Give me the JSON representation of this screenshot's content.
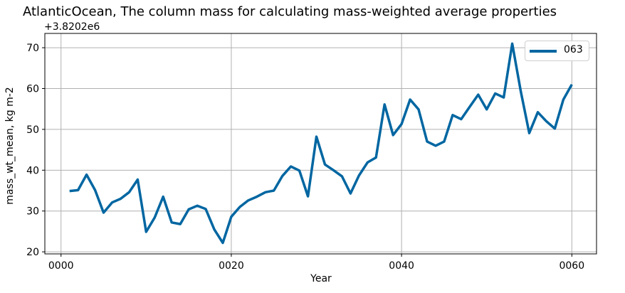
{
  "chart_data": {
    "type": "line",
    "title": "AtlanticOcean, The column mass for calculating mass-weighted average properties",
    "xlabel": "Year",
    "ylabel": "mass_wt_mean, kg m-2",
    "y_offset_label": "+3.8202e6",
    "xlim": [
      -1.9,
      62.9
    ],
    "ylim": [
      19.5,
      73.5
    ],
    "xticks": [
      0,
      20,
      40,
      60
    ],
    "xtick_labels": [
      "0000",
      "0020",
      "0040",
      "0060"
    ],
    "yticks": [
      20,
      30,
      40,
      50,
      60,
      70
    ],
    "ytick_labels": [
      "20",
      "30",
      "40",
      "50",
      "60",
      "70"
    ],
    "grid": true,
    "legend_position": "top-right",
    "series": [
      {
        "name": "063",
        "color": "#0066a1",
        "x": [
          1,
          2,
          3,
          4,
          5,
          6,
          7,
          8,
          9,
          10,
          11,
          12,
          13,
          14,
          15,
          16,
          17,
          18,
          19,
          20,
          21,
          22,
          23,
          24,
          25,
          26,
          27,
          28,
          29,
          30,
          31,
          32,
          33,
          34,
          35,
          36,
          37,
          38,
          39,
          40,
          41,
          42,
          43,
          44,
          45,
          46,
          47,
          48,
          49,
          50,
          51,
          52,
          53,
          54,
          55,
          56,
          57,
          58,
          59,
          60
        ],
        "values": [
          34.9,
          35.1,
          38.9,
          35.1,
          29.6,
          32.1,
          33.0,
          34.6,
          37.7,
          24.9,
          28.4,
          33.5,
          27.2,
          26.8,
          30.4,
          31.3,
          30.5,
          25.5,
          22.2,
          28.6,
          31.0,
          32.6,
          33.5,
          34.6,
          35.0,
          38.6,
          40.9,
          39.9,
          33.6,
          48.2,
          41.4,
          40.0,
          38.5,
          34.3,
          38.7,
          41.9,
          43.1,
          56.1,
          48.6,
          51.3,
          57.3,
          54.9,
          47.0,
          46.0,
          47.0,
          53.5,
          52.5,
          55.5,
          58.5,
          54.9,
          58.8,
          57.8,
          71.0,
          59.3,
          49.1,
          54.2,
          52.0,
          50.2,
          57.3,
          61.0
        ]
      }
    ]
  }
}
